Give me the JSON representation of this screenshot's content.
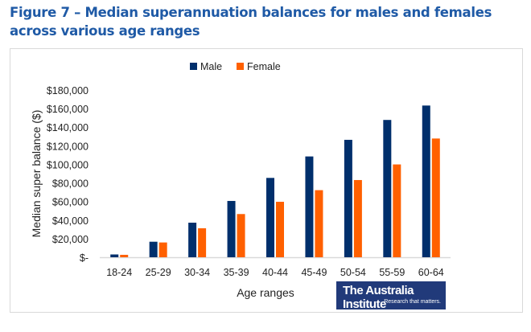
{
  "title": "Figure 7 – Median superannuation balances for males and females across various age ranges",
  "logo": {
    "name": "The Australia Institute",
    "tagline": "Research that matters."
  },
  "chart_data": {
    "type": "bar",
    "title": "",
    "xlabel": "Age ranges",
    "ylabel": "Median super balance ($)",
    "ylim": [
      0,
      180000
    ],
    "yticks": [
      0,
      20000,
      40000,
      60000,
      80000,
      100000,
      120000,
      140000,
      160000,
      180000
    ],
    "ytick_labels": [
      "$-",
      "$20,000",
      "$40,000",
      "$60,000",
      "$80,000",
      "$100,000",
      "$120,000",
      "$140,000",
      "$160,000",
      "$180,000"
    ],
    "categories": [
      "18-24",
      "25-29",
      "30-34",
      "35-39",
      "40-44",
      "45-49",
      "50-54",
      "55-59",
      "60-64"
    ],
    "series": [
      {
        "name": "Male",
        "color": "#002f6c",
        "values": [
          3000,
          16700,
          37200,
          60600,
          85400,
          108500,
          126400,
          147800,
          163300
        ]
      },
      {
        "name": "Female",
        "color": "#ff6000",
        "values": [
          2600,
          15900,
          31200,
          46500,
          59700,
          72200,
          83100,
          99900,
          127800
        ]
      }
    ],
    "legend": "top",
    "grid": false
  }
}
